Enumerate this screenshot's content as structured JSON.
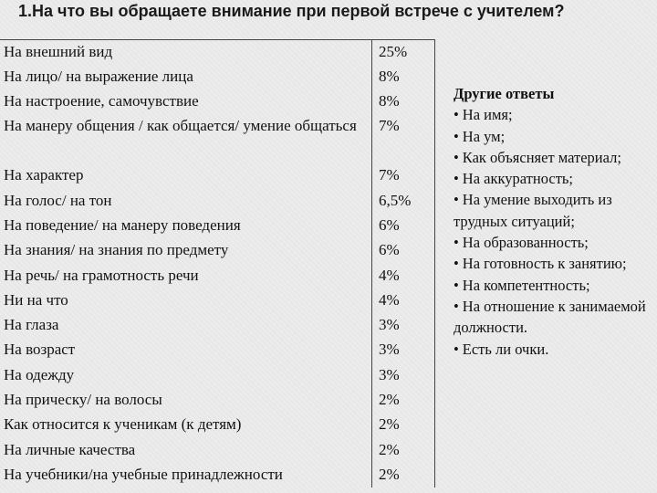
{
  "question": "1.На что вы обращаете внимание при первой встрече с учителем?",
  "rows": [
    {
      "answer": "На внешний вид",
      "percent": "25%"
    },
    {
      "answer": "На лицо/ на выражение лица",
      "percent": "8%"
    },
    {
      "answer": "На настроение, самочувствие",
      "percent": "8%"
    },
    {
      "answer": "На манеру общения / как общается/ умение общаться",
      "percent": "7%"
    },
    {
      "answer": "На характер",
      "percent": "7%"
    },
    {
      "answer": "На голос/ на тон",
      "percent": "6,5%"
    },
    {
      "answer": "На поведение/ на манеру поведения",
      "percent": "6%"
    },
    {
      "answer": "На знания/ на знания по предмету",
      "percent": "6%"
    },
    {
      "answer": "На речь/ на грамотность речи",
      "percent": "4%"
    },
    {
      "answer": "Ни на что",
      "percent": "4%"
    },
    {
      "answer": "На глаза",
      "percent": "3%"
    },
    {
      "answer": "На возраст",
      "percent": "3%"
    },
    {
      "answer": "На одежду",
      "percent": "3%"
    },
    {
      "answer": "На прическу/ на волосы",
      "percent": "2%"
    },
    {
      "answer": "Как относится к ученикам (к детям)",
      "percent": "2%"
    },
    {
      "answer": "На личные качества",
      "percent": "2%"
    },
    {
      "answer": "На учебники/на учебные принадлежности",
      "percent": "2%"
    }
  ],
  "other_answers": {
    "title": "Другие ответы",
    "bullet": "•",
    "items": [
      "На имя;",
      "На ум;",
      "Как объясняет материал;",
      "На аккуратность;",
      "На умение выходить из трудных ситуаций;",
      "На образованность;",
      "На готовность к занятию;",
      "На компетентность;",
      "На отношение к занимаемой должности.",
      "Есть ли очки."
    ]
  }
}
